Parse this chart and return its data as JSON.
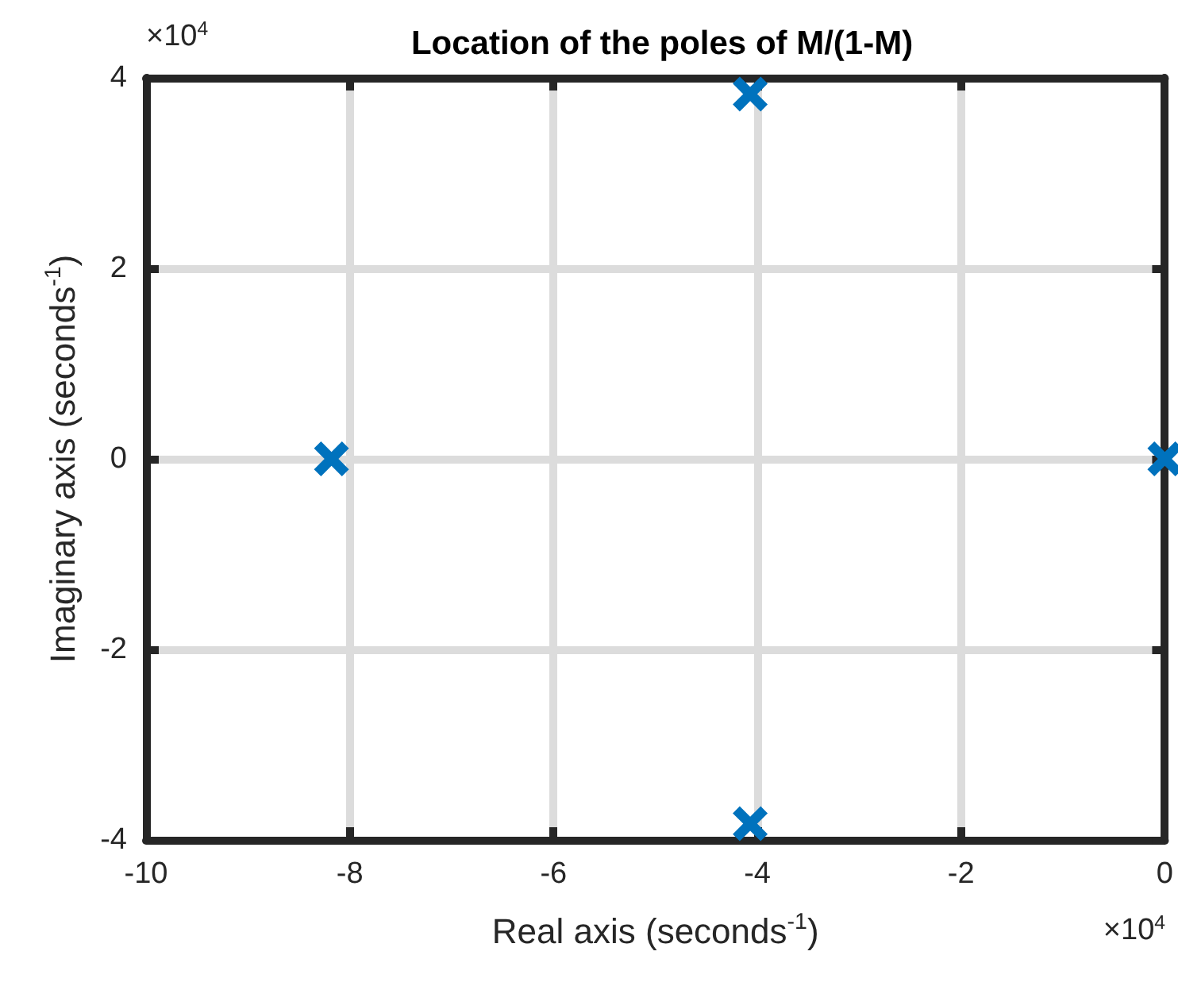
{
  "chart_data": {
    "type": "scatter",
    "title": "Location of the poles of M/(1-M)",
    "xlabel": "Real axis (seconds$^{-1}$)",
    "ylabel": "Imaginary axis (seconds$^{-1}$)",
    "annotations": [
      "×10$^{4}$",
      "×10$^{4}$"
    ],
    "x": [
      -8.18,
      -4.07,
      -4.07,
      0
    ],
    "series": [
      {
        "color": "#0072bd",
        "values": [
          0,
          3.83,
          -3.83,
          0
        ]
      }
    ],
    "xlim": [
      -10,
      0
    ],
    "xticks": [
      -10,
      -8,
      -6,
      -4,
      -2,
      0
    ],
    "ylim": [
      -4,
      4
    ],
    "yticks": [
      -4,
      -2,
      0,
      2,
      4
    ],
    "grid": true,
    "marker": "cross"
  }
}
